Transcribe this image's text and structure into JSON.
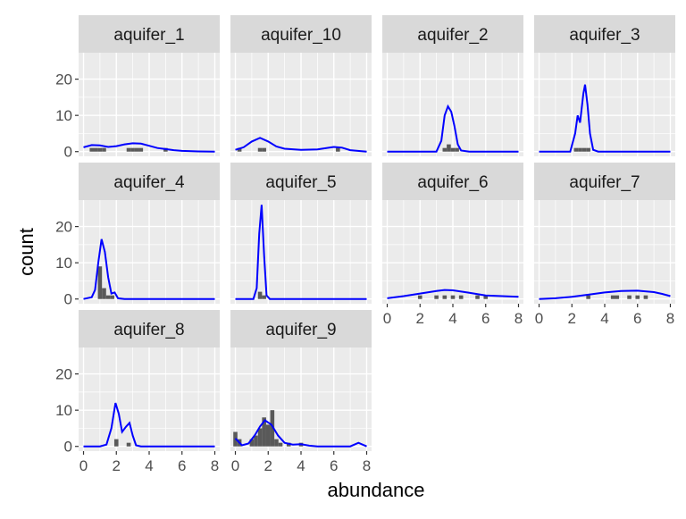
{
  "chart_data": {
    "type": "histogram",
    "xlabel": "abundance",
    "ylabel": "count",
    "xlim": [
      -0.3,
      8.3
    ],
    "ylim": [
      -1.3,
      27.3
    ],
    "x_ticks": [
      0,
      2,
      4,
      6,
      8
    ],
    "y_ticks": [
      0,
      10,
      20
    ],
    "bin_width": 0.25,
    "grid": true,
    "colors": {
      "bars": "#595959",
      "density": "#0000ff",
      "panel": "#ebebeb",
      "strip": "#d9d9d9",
      "grid": "#ffffff"
    },
    "panels": [
      {
        "name": "aquifer_1",
        "bars": [
          [
            0.5,
            1
          ],
          [
            0.75,
            1
          ],
          [
            1.0,
            1
          ],
          [
            1.25,
            1
          ],
          [
            2.75,
            1
          ],
          [
            3.0,
            1
          ],
          [
            3.25,
            1
          ],
          [
            3.5,
            1
          ],
          [
            5.0,
            1
          ]
        ],
        "density": [
          [
            0,
            1.2
          ],
          [
            0.5,
            1.8
          ],
          [
            1.0,
            1.7
          ],
          [
            1.5,
            1.3
          ],
          [
            2.0,
            1.5
          ],
          [
            2.5,
            2.0
          ],
          [
            3.0,
            2.3
          ],
          [
            3.5,
            2.2
          ],
          [
            4.0,
            1.6
          ],
          [
            4.5,
            1.0
          ],
          [
            5.0,
            0.7
          ],
          [
            5.5,
            0.4
          ],
          [
            6.0,
            0.2
          ],
          [
            7.0,
            0.05
          ],
          [
            8.0,
            0
          ]
        ]
      },
      {
        "name": "aquifer_10",
        "bars": [
          [
            0.25,
            1
          ],
          [
            1.5,
            1
          ],
          [
            1.75,
            1
          ],
          [
            6.25,
            1
          ]
        ],
        "density": [
          [
            0,
            0.5
          ],
          [
            0.5,
            1.2
          ],
          [
            1.0,
            2.8
          ],
          [
            1.5,
            3.8
          ],
          [
            2.0,
            2.8
          ],
          [
            2.5,
            1.4
          ],
          [
            3.0,
            0.8
          ],
          [
            4.0,
            0.5
          ],
          [
            5.0,
            0.6
          ],
          [
            6.0,
            1.3
          ],
          [
            6.5,
            1.1
          ],
          [
            7.0,
            0.4
          ],
          [
            8.0,
            0
          ]
        ]
      },
      {
        "name": "aquifer_2",
        "bars": [
          [
            3.5,
            1
          ],
          [
            3.75,
            2
          ],
          [
            4.0,
            1
          ],
          [
            4.25,
            1
          ]
        ],
        "density": [
          [
            0,
            0
          ],
          [
            3.0,
            0
          ],
          [
            3.3,
            3
          ],
          [
            3.5,
            10
          ],
          [
            3.7,
            12.5
          ],
          [
            3.9,
            11
          ],
          [
            4.1,
            7
          ],
          [
            4.3,
            2
          ],
          [
            4.5,
            0.3
          ],
          [
            5.0,
            0
          ],
          [
            8.0,
            0
          ]
        ]
      },
      {
        "name": "aquifer_3",
        "bars": [
          [
            2.25,
            1
          ],
          [
            2.5,
            1
          ],
          [
            2.75,
            1
          ],
          [
            3.0,
            1
          ]
        ],
        "density": [
          [
            0,
            0
          ],
          [
            1.9,
            0
          ],
          [
            2.2,
            5
          ],
          [
            2.35,
            10
          ],
          [
            2.5,
            8
          ],
          [
            2.7,
            16
          ],
          [
            2.8,
            18.5
          ],
          [
            2.95,
            13
          ],
          [
            3.1,
            5
          ],
          [
            3.3,
            0.5
          ],
          [
            3.6,
            0
          ],
          [
            8.0,
            0
          ]
        ]
      },
      {
        "name": "aquifer_4",
        "bars": [
          [
            1.0,
            9
          ],
          [
            1.25,
            3
          ],
          [
            1.5,
            1
          ],
          [
            1.75,
            1
          ]
        ],
        "density": [
          [
            0,
            0
          ],
          [
            0.5,
            0.5
          ],
          [
            0.7,
            2.5
          ],
          [
            0.9,
            10
          ],
          [
            1.1,
            16.5
          ],
          [
            1.3,
            13
          ],
          [
            1.5,
            6
          ],
          [
            1.7,
            1.5
          ],
          [
            1.9,
            1.8
          ],
          [
            2.1,
            0.2
          ],
          [
            2.5,
            0
          ],
          [
            8.0,
            0
          ]
        ]
      },
      {
        "name": "aquifer_5",
        "bars": [
          [
            1.5,
            2
          ],
          [
            1.75,
            1
          ]
        ],
        "density": [
          [
            0,
            0
          ],
          [
            1.1,
            0
          ],
          [
            1.3,
            3
          ],
          [
            1.45,
            18
          ],
          [
            1.6,
            26
          ],
          [
            1.75,
            12
          ],
          [
            1.9,
            1
          ],
          [
            2.1,
            0
          ],
          [
            8.0,
            0
          ]
        ]
      },
      {
        "name": "aquifer_6",
        "bars": [
          [
            2.0,
            1
          ],
          [
            3.0,
            1
          ],
          [
            3.5,
            1
          ],
          [
            4.0,
            1
          ],
          [
            4.5,
            1
          ],
          [
            5.5,
            1
          ],
          [
            6.0,
            1
          ]
        ],
        "density": [
          [
            0,
            0.2
          ],
          [
            1.0,
            0.8
          ],
          [
            2.0,
            1.5
          ],
          [
            3.0,
            2.2
          ],
          [
            3.5,
            2.5
          ],
          [
            4.0,
            2.4
          ],
          [
            5.0,
            1.7
          ],
          [
            6.0,
            1.0
          ],
          [
            7.0,
            0.8
          ],
          [
            8.0,
            0.6
          ]
        ]
      },
      {
        "name": "aquifer_7",
        "bars": [
          [
            3.0,
            1
          ],
          [
            4.5,
            1
          ],
          [
            4.75,
            1
          ],
          [
            5.5,
            1
          ],
          [
            6.0,
            1
          ],
          [
            6.5,
            1
          ]
        ],
        "density": [
          [
            0,
            0
          ],
          [
            1.0,
            0.2
          ],
          [
            2.0,
            0.6
          ],
          [
            3.0,
            1.2
          ],
          [
            4.0,
            1.8
          ],
          [
            5.0,
            2.2
          ],
          [
            6.0,
            2.3
          ],
          [
            7.0,
            1.9
          ],
          [
            7.5,
            1.4
          ],
          [
            8.0,
            0.8
          ]
        ]
      },
      {
        "name": "aquifer_8",
        "bars": [
          [
            2.0,
            2
          ],
          [
            2.75,
            1
          ]
        ],
        "density": [
          [
            0,
            0
          ],
          [
            1.0,
            0
          ],
          [
            1.4,
            0.5
          ],
          [
            1.7,
            5
          ],
          [
            1.95,
            12
          ],
          [
            2.15,
            9
          ],
          [
            2.35,
            4
          ],
          [
            2.6,
            5.5
          ],
          [
            2.8,
            6.5
          ],
          [
            3.0,
            3
          ],
          [
            3.2,
            0.3
          ],
          [
            3.5,
            0
          ],
          [
            8.0,
            0
          ]
        ]
      },
      {
        "name": "aquifer_9",
        "bars": [
          [
            0.0,
            4
          ],
          [
            0.25,
            2
          ],
          [
            1.0,
            2
          ],
          [
            1.25,
            3
          ],
          [
            1.5,
            5
          ],
          [
            1.75,
            8
          ],
          [
            2.0,
            6
          ],
          [
            2.25,
            10
          ],
          [
            2.5,
            2
          ],
          [
            2.75,
            1
          ],
          [
            3.25,
            1
          ],
          [
            4.0,
            1
          ]
        ],
        "density": [
          [
            0,
            2.2
          ],
          [
            0.4,
            0.3
          ],
          [
            0.8,
            0.8
          ],
          [
            1.2,
            3.2
          ],
          [
            1.5,
            5.5
          ],
          [
            1.8,
            7.2
          ],
          [
            2.2,
            6.0
          ],
          [
            2.6,
            3.0
          ],
          [
            3.0,
            1.0
          ],
          [
            3.5,
            0.5
          ],
          [
            4.0,
            0.6
          ],
          [
            4.5,
            0.2
          ],
          [
            5.0,
            0
          ],
          [
            7.0,
            0
          ],
          [
            7.5,
            1.0
          ],
          [
            8.0,
            0
          ]
        ]
      }
    ]
  }
}
